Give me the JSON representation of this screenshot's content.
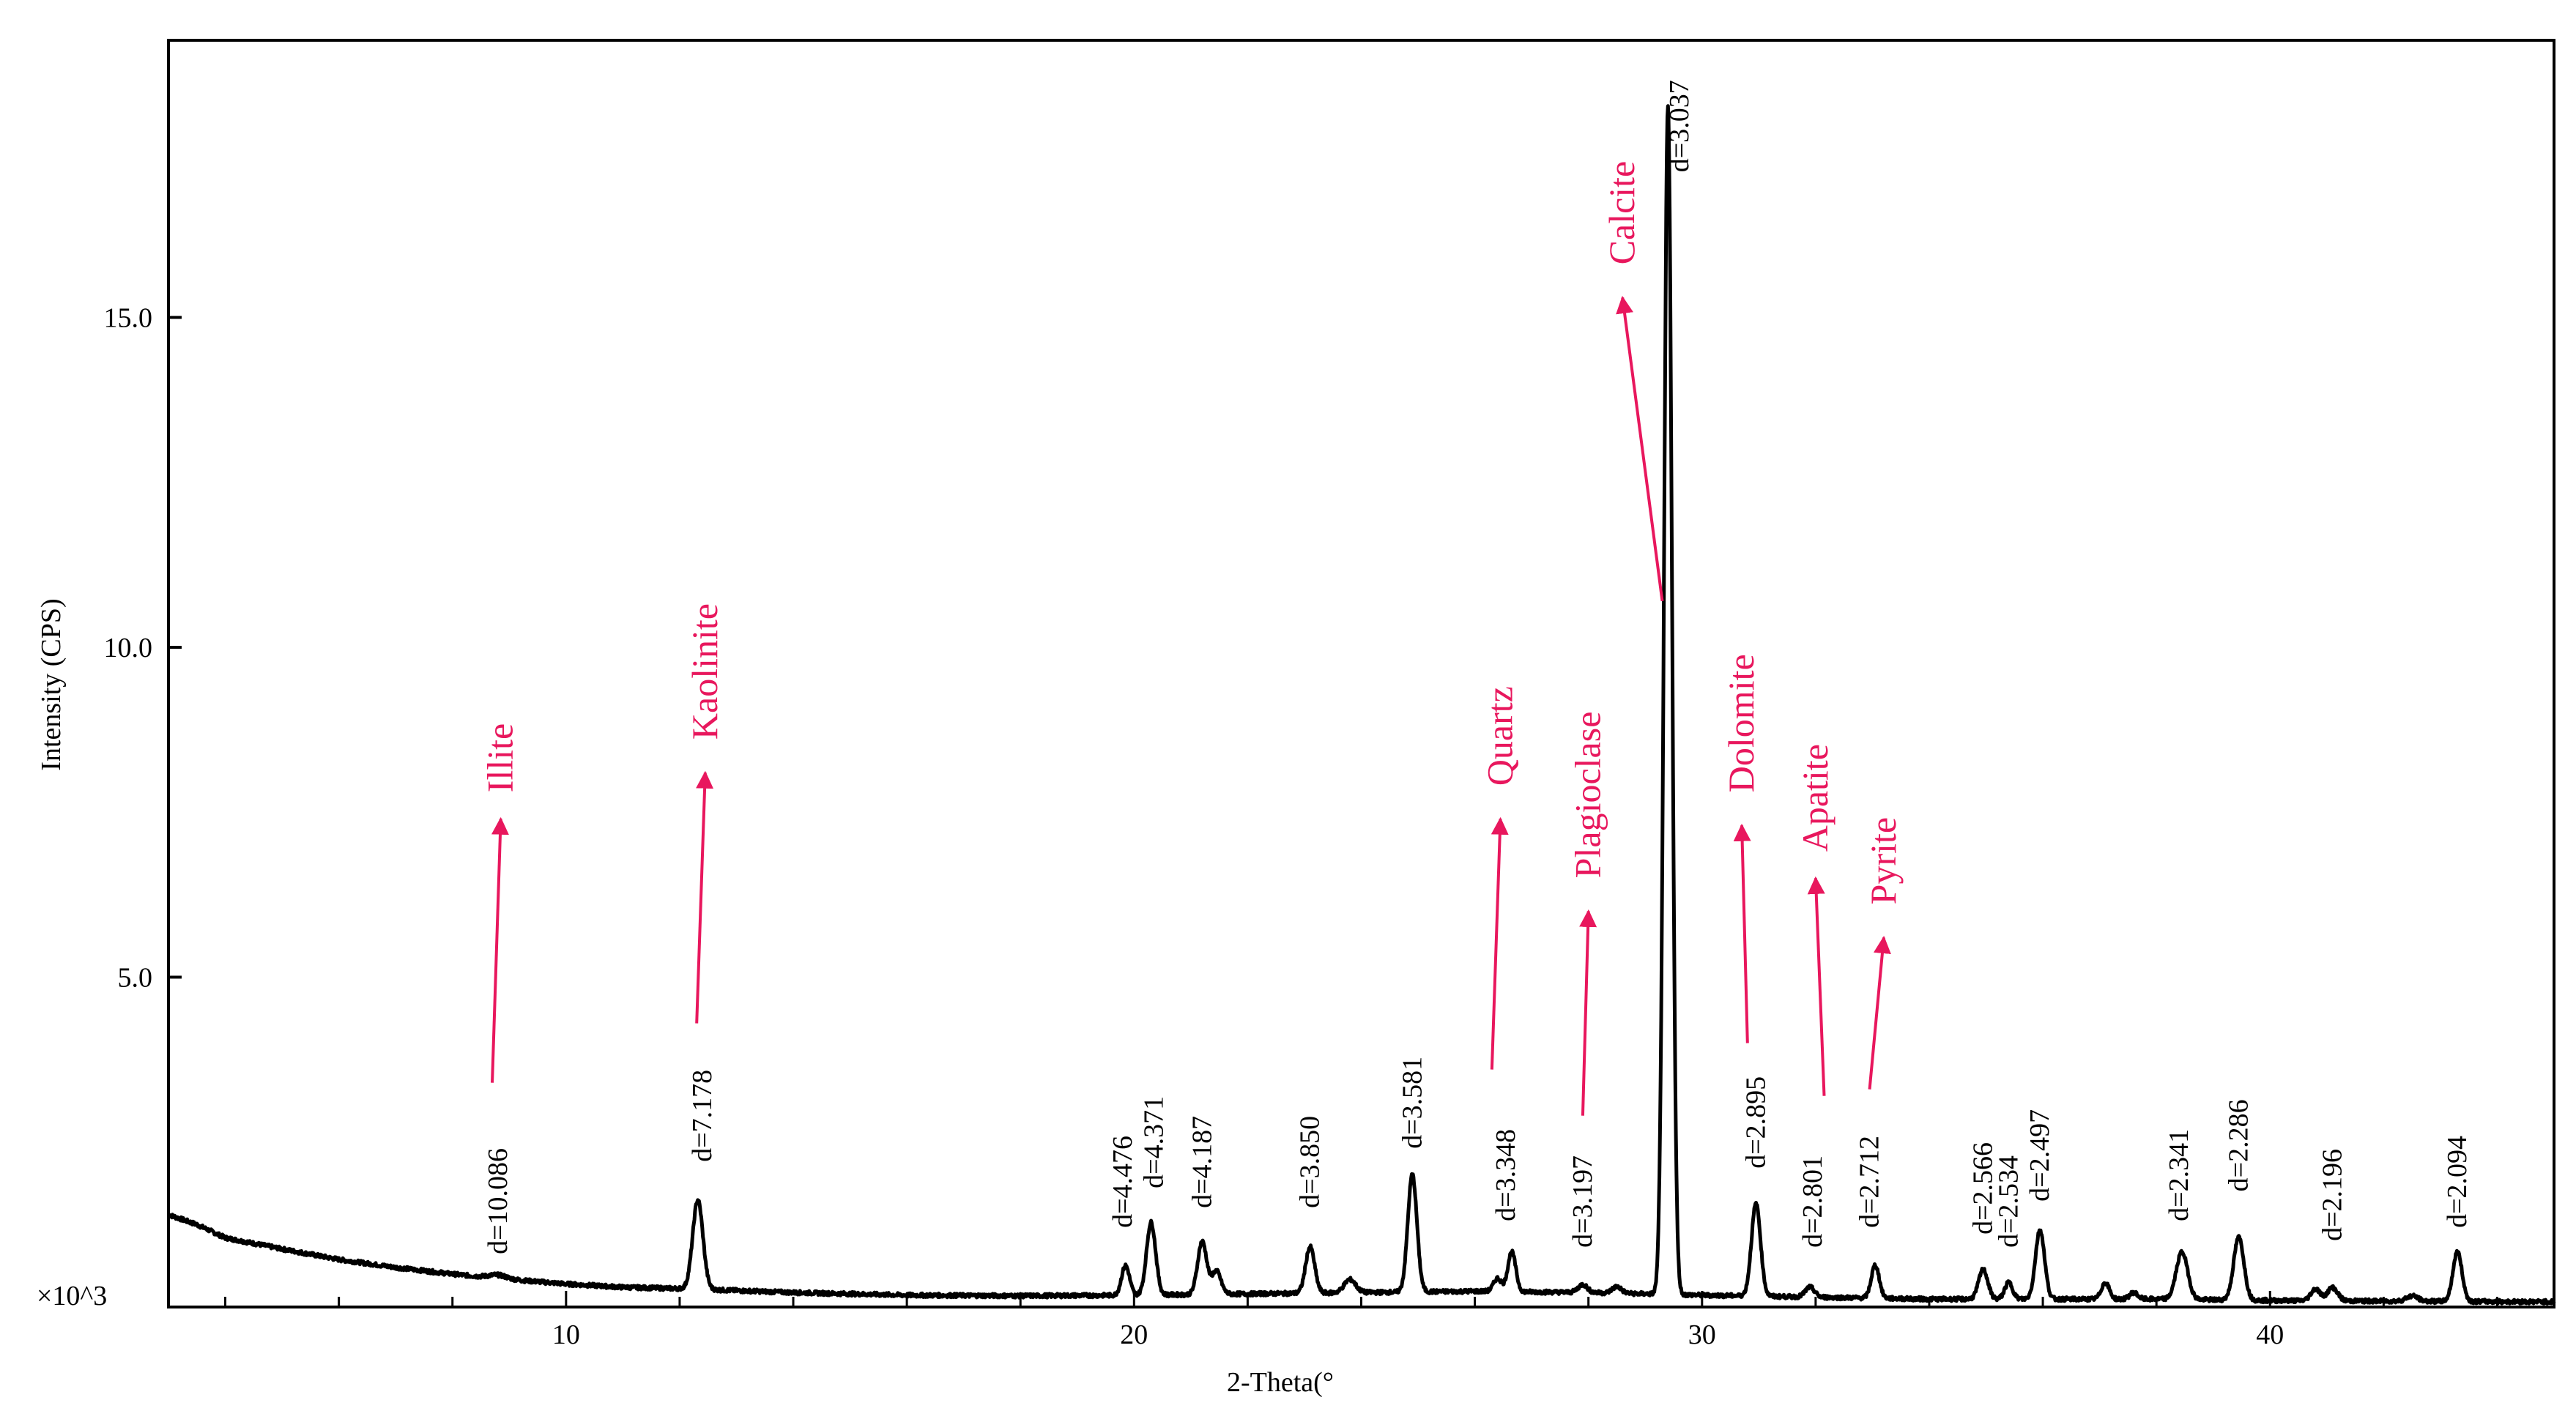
{
  "chart_data": {
    "type": "line",
    "title": "",
    "xlabel": "2-Theta(°",
    "ylabel": "Intensity (CPS)",
    "y_multiplier_label": "×10^3",
    "xlim": [
      3,
      45
    ],
    "ylim": [
      0,
      19.2
    ],
    "x_ticks": [
      10,
      20,
      30,
      40
    ],
    "y_ticks": [
      5.0,
      10.0,
      15.0
    ],
    "x_ticks_labels": [
      "10",
      "20",
      "30",
      "40"
    ],
    "y_ticks_labels": [
      "5.0",
      "10.0",
      "15.0"
    ],
    "colors": {
      "line": "#000000",
      "annotation": "#e8175d"
    },
    "baseline": [
      [
        3.0,
        1.4
      ],
      [
        3.5,
        1.25
      ],
      [
        4.0,
        1.05
      ],
      [
        5.0,
        0.88
      ],
      [
        6.0,
        0.72
      ],
      [
        7.0,
        0.6
      ],
      [
        8.0,
        0.5
      ],
      [
        9.0,
        0.42
      ],
      [
        10.0,
        0.35
      ],
      [
        11.0,
        0.3
      ],
      [
        12.0,
        0.28
      ],
      [
        14.0,
        0.22
      ],
      [
        16.0,
        0.18
      ],
      [
        18.0,
        0.17
      ],
      [
        20.0,
        0.18
      ],
      [
        22.0,
        0.2
      ],
      [
        24.0,
        0.22
      ],
      [
        26.0,
        0.24
      ],
      [
        28.0,
        0.22
      ],
      [
        30.0,
        0.18
      ],
      [
        32.0,
        0.15
      ],
      [
        34.0,
        0.12
      ],
      [
        36.0,
        0.12
      ],
      [
        38.0,
        0.12
      ],
      [
        40.0,
        0.1
      ],
      [
        42.0,
        0.09
      ],
      [
        45.0,
        0.08
      ]
    ],
    "peaks": [
      {
        "x": 8.8,
        "h": 0.05,
        "w": 0.15
      },
      {
        "x": 12.32,
        "h": 1.35,
        "w": 0.09
      },
      {
        "x": 19.85,
        "h": 0.45,
        "w": 0.07
      },
      {
        "x": 20.3,
        "h": 1.1,
        "w": 0.08
      },
      {
        "x": 21.2,
        "h": 0.8,
        "w": 0.08
      },
      {
        "x": 21.45,
        "h": 0.35,
        "w": 0.08
      },
      {
        "x": 23.1,
        "h": 0.7,
        "w": 0.08
      },
      {
        "x": 23.8,
        "h": 0.2,
        "w": 0.1
      },
      {
        "x": 24.9,
        "h": 1.78,
        "w": 0.08
      },
      {
        "x": 26.4,
        "h": 0.2,
        "w": 0.07
      },
      {
        "x": 26.65,
        "h": 0.6,
        "w": 0.07
      },
      {
        "x": 27.9,
        "h": 0.12,
        "w": 0.08
      },
      {
        "x": 28.5,
        "h": 0.1,
        "w": 0.08
      },
      {
        "x": 29.4,
        "h": 18.0,
        "w": 0.07
      },
      {
        "x": 30.95,
        "h": 1.4,
        "w": 0.08
      },
      {
        "x": 31.9,
        "h": 0.15,
        "w": 0.08
      },
      {
        "x": 33.05,
        "h": 0.5,
        "w": 0.07
      },
      {
        "x": 34.95,
        "h": 0.45,
        "w": 0.08
      },
      {
        "x": 35.4,
        "h": 0.25,
        "w": 0.07
      },
      {
        "x": 35.95,
        "h": 1.05,
        "w": 0.08
      },
      {
        "x": 37.1,
        "h": 0.25,
        "w": 0.07
      },
      {
        "x": 37.6,
        "h": 0.1,
        "w": 0.07
      },
      {
        "x": 38.45,
        "h": 0.72,
        "w": 0.1
      },
      {
        "x": 39.45,
        "h": 0.95,
        "w": 0.09
      },
      {
        "x": 40.8,
        "h": 0.18,
        "w": 0.08
      },
      {
        "x": 41.1,
        "h": 0.2,
        "w": 0.09
      },
      {
        "x": 42.5,
        "h": 0.08,
        "w": 0.1
      },
      {
        "x": 43.3,
        "h": 0.75,
        "w": 0.08
      }
    ],
    "d_labels": [
      {
        "text": "d=10.086",
        "x": 8.8,
        "y": 0.8
      },
      {
        "text": "d=7.178",
        "x": 12.4,
        "y": 2.2
      },
      {
        "text": "d=4.476",
        "x": 19.8,
        "y": 1.2
      },
      {
        "text": "d=4.371",
        "x": 20.35,
        "y": 1.8
      },
      {
        "text": "d=4.187",
        "x": 21.2,
        "y": 1.5
      },
      {
        "text": "d=3.850",
        "x": 23.1,
        "y": 1.5
      },
      {
        "text": "d=3.581",
        "x": 24.9,
        "y": 2.4
      },
      {
        "text": "d=3.348",
        "x": 26.55,
        "y": 1.3
      },
      {
        "text": "d=3.197",
        "x": 27.9,
        "y": 0.9
      },
      {
        "text": "d=3.037",
        "x": 29.6,
        "y": 17.2
      },
      {
        "text": "d=2.895",
        "x": 30.95,
        "y": 2.1
      },
      {
        "text": "d=2.801",
        "x": 31.95,
        "y": 0.9
      },
      {
        "text": "d=2.712",
        "x": 32.95,
        "y": 1.2
      },
      {
        "text": "d=2.566",
        "x": 34.95,
        "y": 1.1
      },
      {
        "text": "d=2.534",
        "x": 35.4,
        "y": 0.9
      },
      {
        "text": "d=2.497",
        "x": 35.95,
        "y": 1.6
      },
      {
        "text": "d=2.341",
        "x": 38.4,
        "y": 1.3
      },
      {
        "text": "d=2.286",
        "x": 39.45,
        "y": 1.75
      },
      {
        "text": "d=2.196",
        "x": 41.1,
        "y": 1.0
      },
      {
        "text": "d=2.094",
        "x": 43.3,
        "y": 1.2
      }
    ],
    "mineral_annotations": [
      {
        "text": "Illite",
        "x_from": 8.7,
        "y_from": 3.4,
        "x_to": 8.85,
        "y_to": 7.4,
        "text_x": 8.85,
        "text_y": 7.8
      },
      {
        "text": "Kaolinite",
        "x_from": 12.3,
        "y_from": 4.3,
        "x_to": 12.45,
        "y_to": 8.1,
        "text_x": 12.45,
        "text_y": 8.6
      },
      {
        "text": "Quartz",
        "x_from": 26.3,
        "y_from": 3.6,
        "x_to": 26.45,
        "y_to": 7.4,
        "text_x": 26.45,
        "text_y": 7.9
      },
      {
        "text": "Plagioclase",
        "x_from": 27.9,
        "y_from": 2.9,
        "x_to": 28.0,
        "y_to": 6.0,
        "text_x": 28.0,
        "text_y": 6.5
      },
      {
        "text": "Calcite",
        "x_from": 29.3,
        "y_from": 10.7,
        "x_to": 28.6,
        "y_to": 15.3,
        "text_x": 28.6,
        "text_y": 15.8
      },
      {
        "text": "Dolomite",
        "x_from": 30.8,
        "y_from": 4.0,
        "x_to": 30.7,
        "y_to": 7.3,
        "text_x": 30.7,
        "text_y": 7.8
      },
      {
        "text": "Apatite",
        "x_from": 32.15,
        "y_from": 3.2,
        "x_to": 32.0,
        "y_to": 6.5,
        "text_x": 32.0,
        "text_y": 6.9
      },
      {
        "text": "Pyrite",
        "x_from": 32.95,
        "y_from": 3.3,
        "x_to": 33.2,
        "y_to": 5.6,
        "text_x": 33.2,
        "text_y": 6.1
      }
    ]
  }
}
